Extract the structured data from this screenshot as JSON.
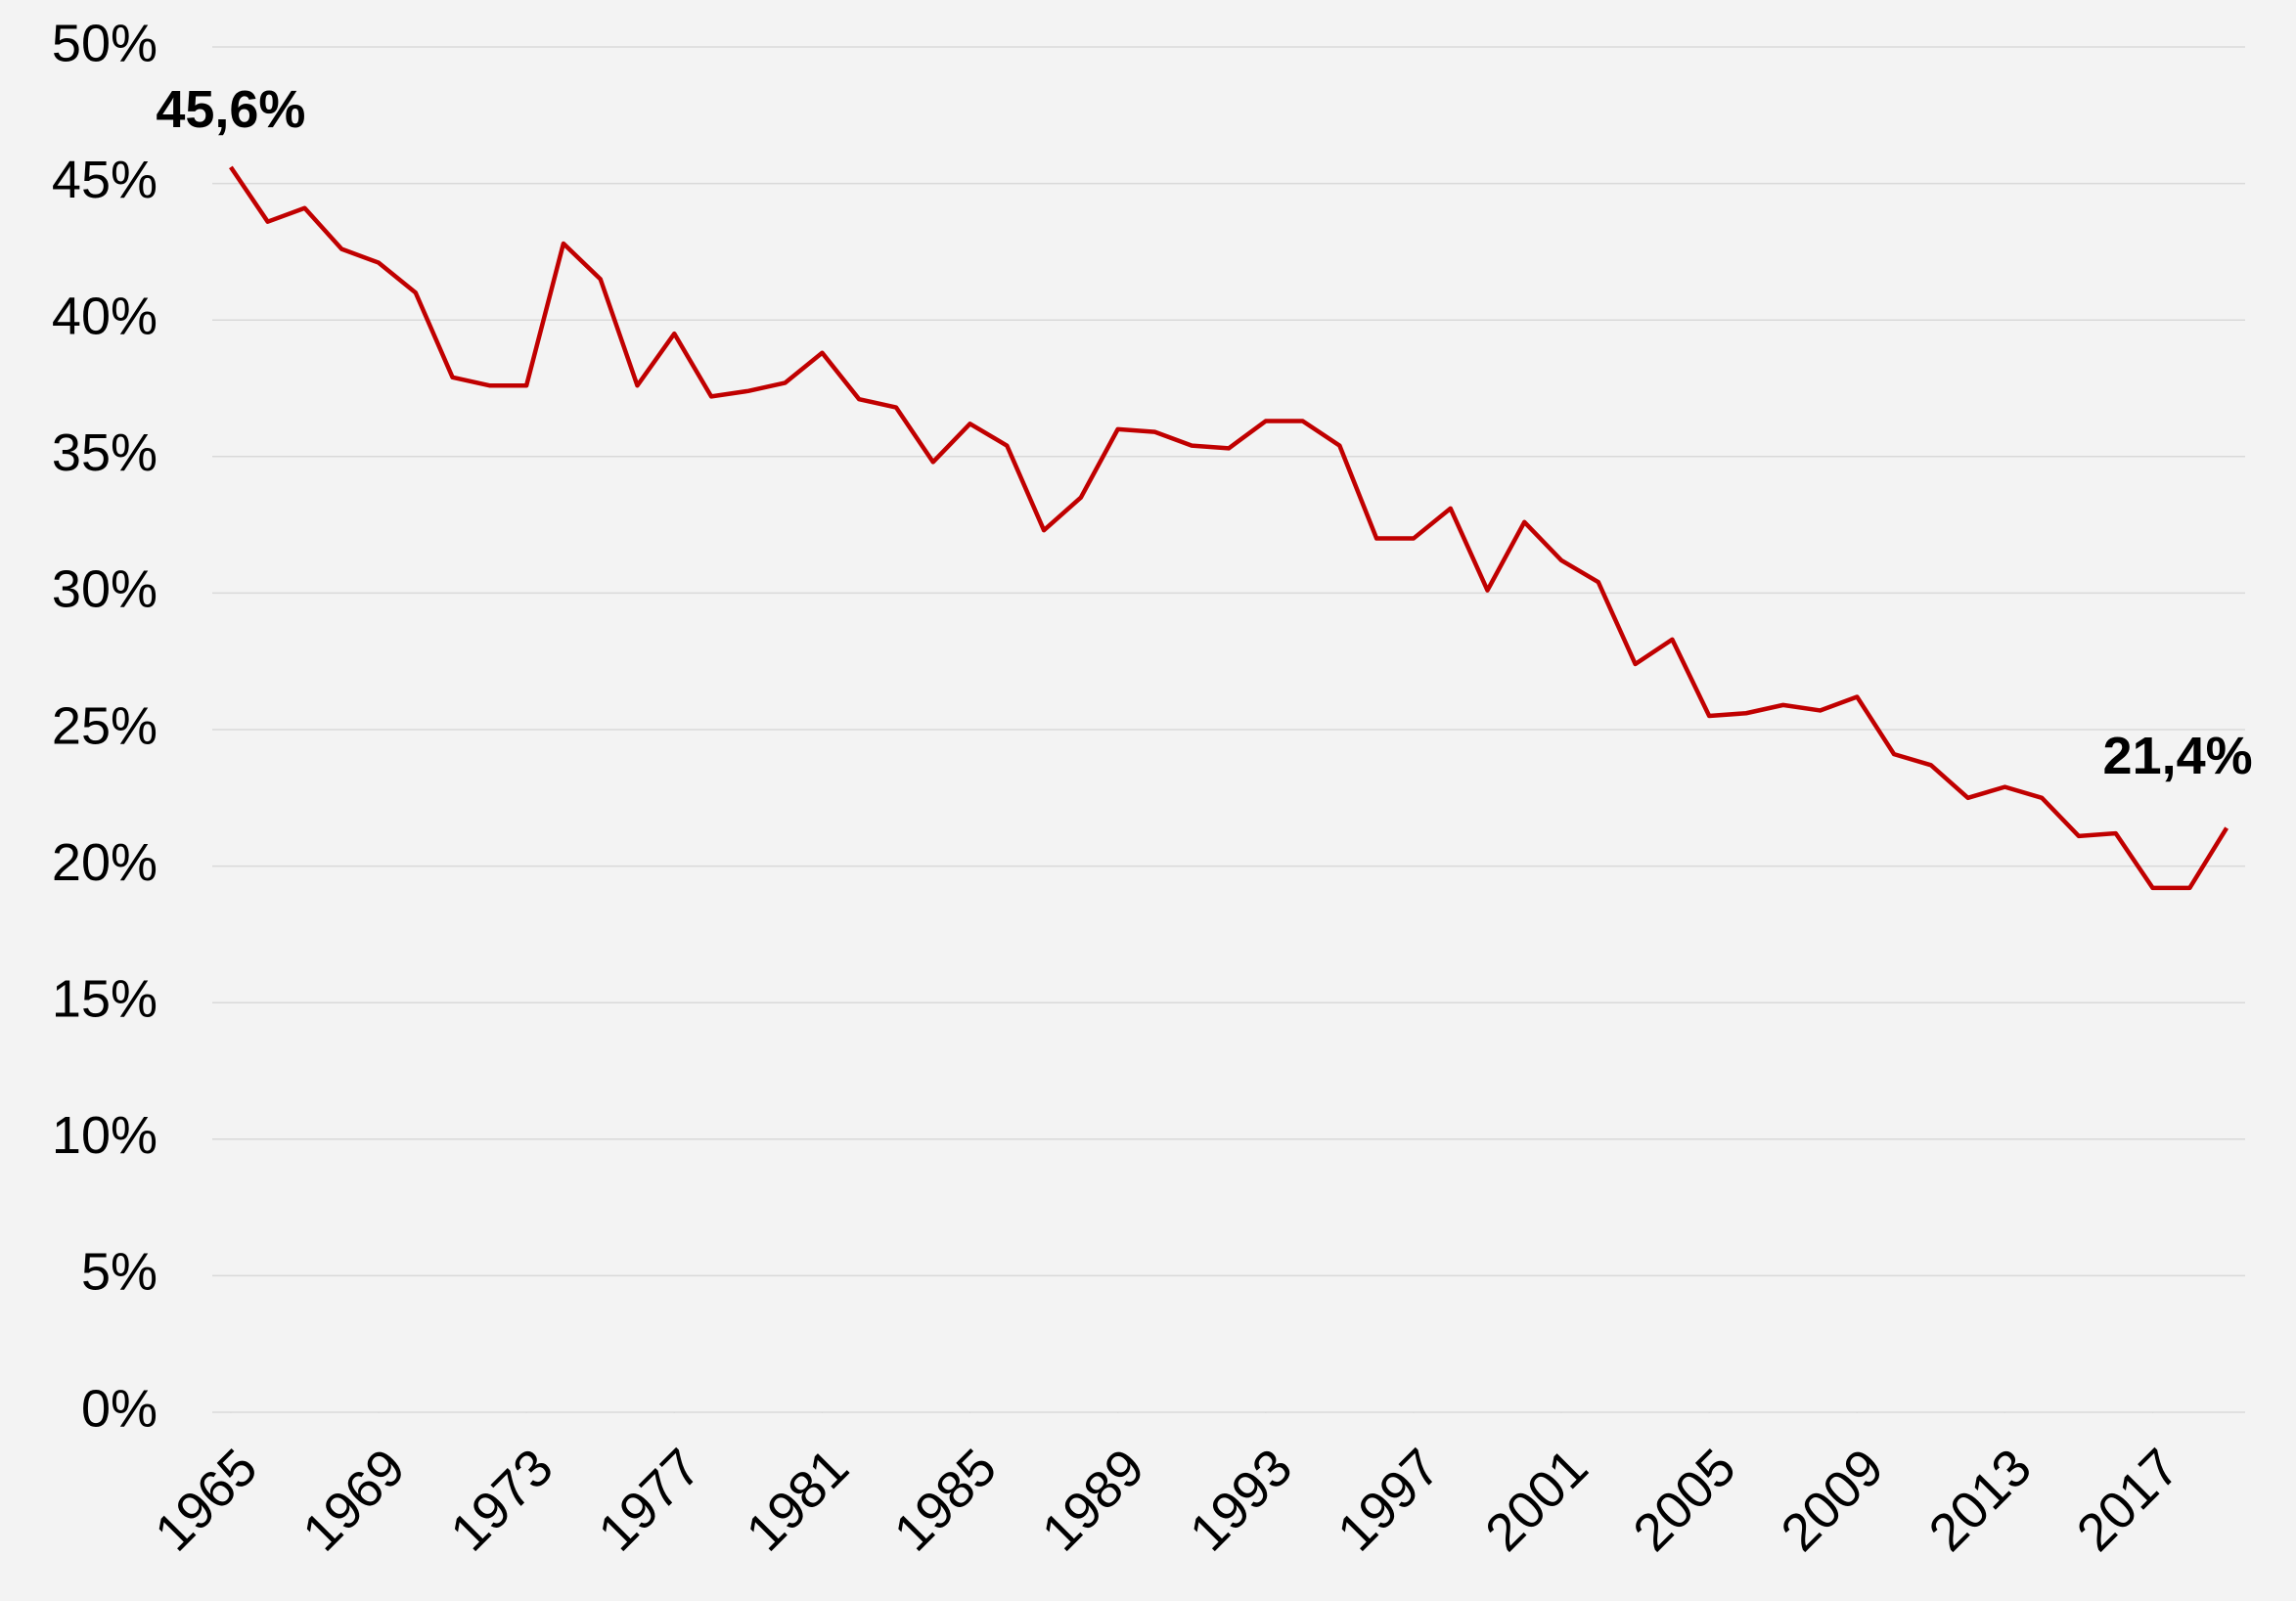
{
  "chart_data": {
    "type": "line",
    "x": [
      1965,
      1966,
      1967,
      1968,
      1969,
      1970,
      1971,
      1972,
      1973,
      1974,
      1975,
      1976,
      1977,
      1978,
      1979,
      1980,
      1981,
      1982,
      1983,
      1984,
      1985,
      1986,
      1987,
      1988,
      1989,
      1990,
      1991,
      1992,
      1993,
      1994,
      1995,
      1996,
      1997,
      1998,
      1999,
      2000,
      2001,
      2002,
      2003,
      2004,
      2005,
      2006,
      2007,
      2008,
      2009,
      2010,
      2011,
      2012,
      2013,
      2014,
      2015,
      2016,
      2017,
      2018,
      2019
    ],
    "series": [
      {
        "color": "#c00000",
        "values": [
          45.6,
          43.6,
          44.1,
          42.6,
          42.1,
          41.0,
          37.9,
          37.6,
          37.6,
          42.8,
          41.5,
          37.6,
          39.5,
          37.2,
          37.4,
          37.7,
          38.8,
          37.1,
          36.8,
          34.8,
          36.2,
          35.4,
          32.3,
          33.5,
          36.0,
          35.9,
          35.4,
          35.3,
          36.3,
          36.3,
          35.4,
          32.0,
          32.0,
          33.1,
          30.1,
          32.6,
          31.2,
          30.4,
          27.4,
          28.3,
          25.5,
          25.6,
          25.9,
          25.7,
          26.2,
          24.1,
          23.7,
          22.5,
          22.9,
          22.5,
          21.1,
          21.2,
          19.2,
          19.2,
          21.4
        ],
        "value_labels": [
          "45,6%",
          null,
          null,
          null,
          null,
          null,
          null,
          null,
          null,
          null,
          null,
          null,
          null,
          null,
          null,
          null,
          null,
          null,
          null,
          null,
          null,
          null,
          null,
          null,
          null,
          null,
          null,
          null,
          null,
          null,
          null,
          null,
          null,
          null,
          null,
          null,
          null,
          null,
          null,
          null,
          null,
          null,
          null,
          null,
          null,
          null,
          null,
          null,
          null,
          null,
          null,
          null,
          null,
          null,
          "21,4%"
        ]
      }
    ],
    "xlim": [
      1964.5,
      2019.5
    ],
    "xticks": [
      1965,
      1969,
      1973,
      1977,
      1981,
      1985,
      1989,
      1993,
      1997,
      2001,
      2005,
      2009,
      2013,
      2017
    ],
    "ylim": [
      0,
      50
    ],
    "yticks": [
      {
        "value": 0,
        "label": "0%"
      },
      {
        "value": 5,
        "label": "5%"
      },
      {
        "value": 10,
        "label": "10%"
      },
      {
        "value": 15,
        "label": "15%"
      },
      {
        "value": 20,
        "label": "20%"
      },
      {
        "value": 25,
        "label": "25%"
      },
      {
        "value": 30,
        "label": "30%"
      },
      {
        "value": 35,
        "label": "35%"
      },
      {
        "value": 40,
        "label": "40%"
      },
      {
        "value": 45,
        "label": "45%"
      },
      {
        "value": 50,
        "label": "50%"
      }
    ],
    "grid": true
  }
}
